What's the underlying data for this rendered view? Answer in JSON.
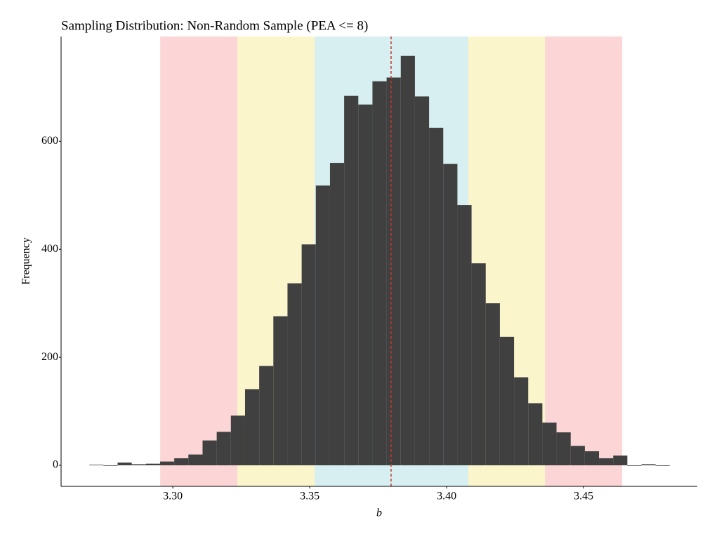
{
  "chart_data": {
    "type": "histogram",
    "title": "Sampling Distribution: Non-Random Sample (PEA <= 8)",
    "x_label": "b",
    "y_label": "Frequency",
    "bins": [
      3.2695,
      3.27467,
      3.27984,
      3.28501,
      3.29018,
      3.29535,
      3.30052,
      3.30569,
      3.31086,
      3.31603,
      3.3212,
      3.32637,
      3.33154,
      3.33671,
      3.34188,
      3.34705,
      3.35222,
      3.35739,
      3.36256,
      3.36773,
      3.3729,
      3.37807,
      3.38324,
      3.38841,
      3.39358,
      3.39875,
      3.40392,
      3.40909,
      3.41426,
      3.41943,
      3.4246,
      3.42977,
      3.43494,
      3.44011,
      3.44528,
      3.45045,
      3.45562,
      3.46079,
      3.46596,
      3.47113,
      3.4763,
      3.48147
    ],
    "values": [
      1,
      0,
      5,
      2,
      3,
      7,
      13,
      20,
      46,
      62,
      92,
      141,
      184,
      276,
      337,
      409,
      518,
      560,
      684,
      668,
      711,
      718,
      758,
      683,
      625,
      558,
      482,
      374,
      300,
      238,
      163,
      115,
      79,
      61,
      36,
      26,
      13,
      18,
      0,
      2,
      0
    ],
    "color": "#404040",
    "bands": [
      {
        "from": 3.2954,
        "to": 3.3236,
        "color": "#fcd5d6"
      },
      {
        "from": 3.3236,
        "to": 3.3518,
        "color": "#fbf5cc"
      },
      {
        "from": 3.3518,
        "to": 3.4079,
        "color": "#d7eff0"
      },
      {
        "from": 3.4079,
        "to": 3.4359,
        "color": "#fbf5cc"
      },
      {
        "from": 3.4359,
        "to": 3.4641,
        "color": "#fcd5d6"
      }
    ],
    "vline": {
      "value": 3.3797,
      "color": "#c0392b"
    },
    "xlim": [
      3.2592,
      3.4915
    ],
    "ylim": [
      -39,
      794
    ],
    "xticks": [
      {
        "value": 3.3,
        "label": "3.30"
      },
      3.35,
      {
        "value": 3.4,
        "label": "3.40"
      },
      3.45
    ],
    "yticks": [
      0,
      200,
      400,
      600
    ],
    "grid": false
  }
}
